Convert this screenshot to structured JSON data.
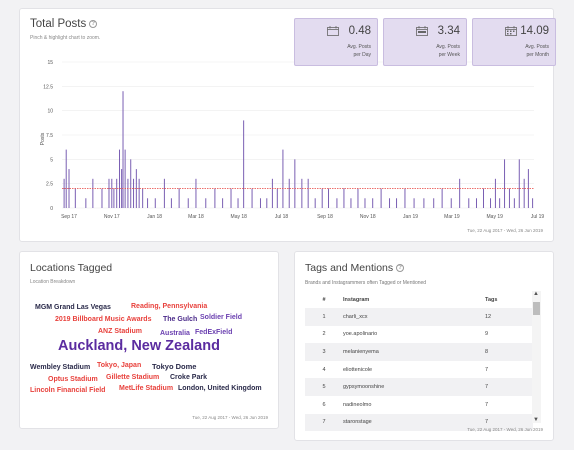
{
  "total_posts": {
    "title": "Total Posts",
    "subtitle": "Pinch & highlight chart to zoom.",
    "date_range": "Tue, 22 Aug 2017 - Wed, 26 Jun 2019",
    "stats": [
      {
        "value": "0.48",
        "label1": "Avg. Posts",
        "label2": "per Day",
        "icon": "calendar-day-icon"
      },
      {
        "value": "3.34",
        "label1": "Avg. Posts",
        "label2": "per Week",
        "icon": "calendar-week-icon"
      },
      {
        "value": "14.09",
        "label1": "Avg. Posts",
        "label2": "per Month",
        "icon": "calendar-month-icon"
      }
    ]
  },
  "chart_data": {
    "type": "bar",
    "ylabel": "Posts",
    "ylim": [
      0,
      15
    ],
    "yticks": [
      "0",
      "2.5",
      "5",
      "7.5",
      "10",
      "12.5",
      "15"
    ],
    "xticks": [
      "Sep 17",
      "Nov 17",
      "Jan 18",
      "Mar 18",
      "May 18",
      "Jul 18",
      "Sep 18",
      "Nov 18",
      "Jan 19",
      "Mar 19",
      "May 19",
      "Jul 19"
    ],
    "x_range": [
      "2017-08-22",
      "2019-06-26"
    ],
    "average_line": 2,
    "bar_color": "#7a5fb3",
    "average_color": "#e8413c",
    "x": [
      "2017-08-25",
      "2017-08-28",
      "2017-09-01",
      "2017-09-10",
      "2017-09-25",
      "2017-10-05",
      "2017-10-18",
      "2017-10-28",
      "2017-11-01",
      "2017-11-04",
      "2017-11-08",
      "2017-11-12",
      "2017-11-15",
      "2017-11-17",
      "2017-11-20",
      "2017-11-24",
      "2017-11-28",
      "2017-12-02",
      "2017-12-06",
      "2017-12-10",
      "2017-12-15",
      "2017-12-22",
      "2018-01-02",
      "2018-01-15",
      "2018-01-25",
      "2018-02-05",
      "2018-02-18",
      "2018-03-01",
      "2018-03-15",
      "2018-03-28",
      "2018-04-08",
      "2018-04-20",
      "2018-04-30",
      "2018-05-08",
      "2018-05-20",
      "2018-06-01",
      "2018-06-10",
      "2018-06-18",
      "2018-06-25",
      "2018-07-03",
      "2018-07-12",
      "2018-07-20",
      "2018-07-30",
      "2018-08-08",
      "2018-08-18",
      "2018-08-28",
      "2018-09-06",
      "2018-09-18",
      "2018-09-28",
      "2018-10-08",
      "2018-10-18",
      "2018-10-28",
      "2018-11-08",
      "2018-11-20",
      "2018-12-02",
      "2018-12-12",
      "2018-12-24",
      "2019-01-06",
      "2019-01-20",
      "2019-02-03",
      "2019-02-15",
      "2019-02-28",
      "2019-03-12",
      "2019-03-25",
      "2019-04-05",
      "2019-04-15",
      "2019-04-25",
      "2019-05-02",
      "2019-05-08",
      "2019-05-15",
      "2019-05-22",
      "2019-05-29",
      "2019-06-05",
      "2019-06-12",
      "2019-06-18",
      "2019-06-24"
    ],
    "values": [
      3,
      6,
      4,
      2,
      1,
      3,
      2,
      3,
      3,
      2,
      3,
      6,
      4,
      12,
      6,
      3,
      5,
      3,
      4,
      3,
      2,
      1,
      1,
      3,
      1,
      2,
      1,
      3,
      1,
      2,
      1,
      2,
      1,
      9,
      2,
      1,
      1,
      3,
      2,
      6,
      3,
      5,
      3,
      3,
      1,
      2,
      2,
      1,
      2,
      1,
      2,
      1,
      1,
      2,
      1,
      1,
      2,
      1,
      1,
      1,
      2,
      1,
      3,
      1,
      1,
      2,
      1,
      3,
      1,
      5,
      2,
      1,
      5,
      3,
      4,
      1
    ]
  },
  "locations": {
    "title": "Locations Tagged",
    "subtitle": "Location Breakdown",
    "date_range": "Tue, 22 Aug 2017 - Wed, 26 Jun 2019",
    "words": [
      {
        "text": "MGM Grand Las Vegas",
        "color": "#2a2a4a"
      },
      {
        "text": "Reading, Pennsylvania",
        "color": "#e8413c"
      },
      {
        "text": "2019 Billboard Music Awards",
        "color": "#e8413c"
      },
      {
        "text": "The Gulch",
        "color": "#4b2a8a"
      },
      {
        "text": "Soldier Field",
        "color": "#6a3fb0"
      },
      {
        "text": "ANZ Stadium",
        "color": "#e8413c"
      },
      {
        "text": "Australia",
        "color": "#6a3fb0"
      },
      {
        "text": "FedExField",
        "color": "#6a3fb0"
      },
      {
        "text": "Auckland, New Zealand",
        "color": "#5b2ca0"
      },
      {
        "text": "Wembley Stadium",
        "color": "#2a2a4a"
      },
      {
        "text": "Tokyo, Japan",
        "color": "#e8413c"
      },
      {
        "text": "Tokyo Dome",
        "color": "#2a2a4a"
      },
      {
        "text": "Optus Stadium",
        "color": "#e8413c"
      },
      {
        "text": "Gillette Stadium",
        "color": "#e8413c"
      },
      {
        "text": "Croke Park",
        "color": "#2a2a4a"
      },
      {
        "text": "Lincoln Financial Field",
        "color": "#e8413c"
      },
      {
        "text": "MetLife Stadium",
        "color": "#e8413c"
      },
      {
        "text": "London, United Kingdom",
        "color": "#2a2a4a"
      }
    ]
  },
  "tags": {
    "title": "Tags and Mentions",
    "subtitle": "Brands and Instagrammers often Tagged or Mentioned",
    "date_range": "Tue, 22 Aug 2017 - Wed, 26 Jun 2019",
    "columns": [
      "#",
      "Instagram",
      "Tags"
    ],
    "rows": [
      [
        "1",
        "charli_xcx",
        "12"
      ],
      [
        "2",
        "yoe.apolinario",
        "9"
      ],
      [
        "3",
        "melanienyema",
        "8"
      ],
      [
        "4",
        "eliottenicole",
        "7"
      ],
      [
        "5",
        "gypsymoonshine",
        "7"
      ],
      [
        "6",
        "nadineolmo",
        "7"
      ],
      [
        "7",
        "staronstage",
        "7"
      ]
    ]
  }
}
